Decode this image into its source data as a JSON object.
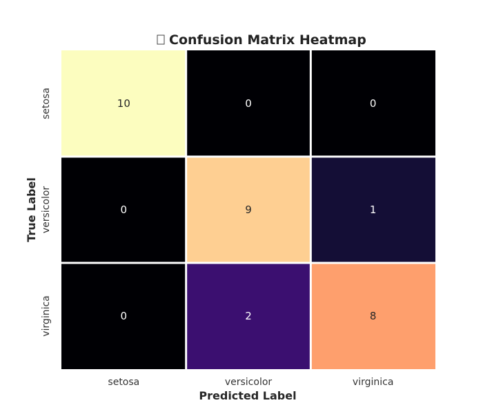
{
  "chart_data": {
    "type": "heatmap",
    "title": "Confusion Matrix Heatmap",
    "title_icon": "chart-icon",
    "xlabel": "Predicted Label",
    "ylabel": "True Label",
    "x_categories": [
      "setosa",
      "versicolor",
      "virginica"
    ],
    "y_categories": [
      "setosa",
      "versicolor",
      "virginica"
    ],
    "values": [
      [
        10,
        0,
        0
      ],
      [
        0,
        9,
        1
      ],
      [
        0,
        2,
        8
      ]
    ],
    "colormap": "magma",
    "colorbar": false,
    "value_range": [
      0,
      10
    ]
  }
}
